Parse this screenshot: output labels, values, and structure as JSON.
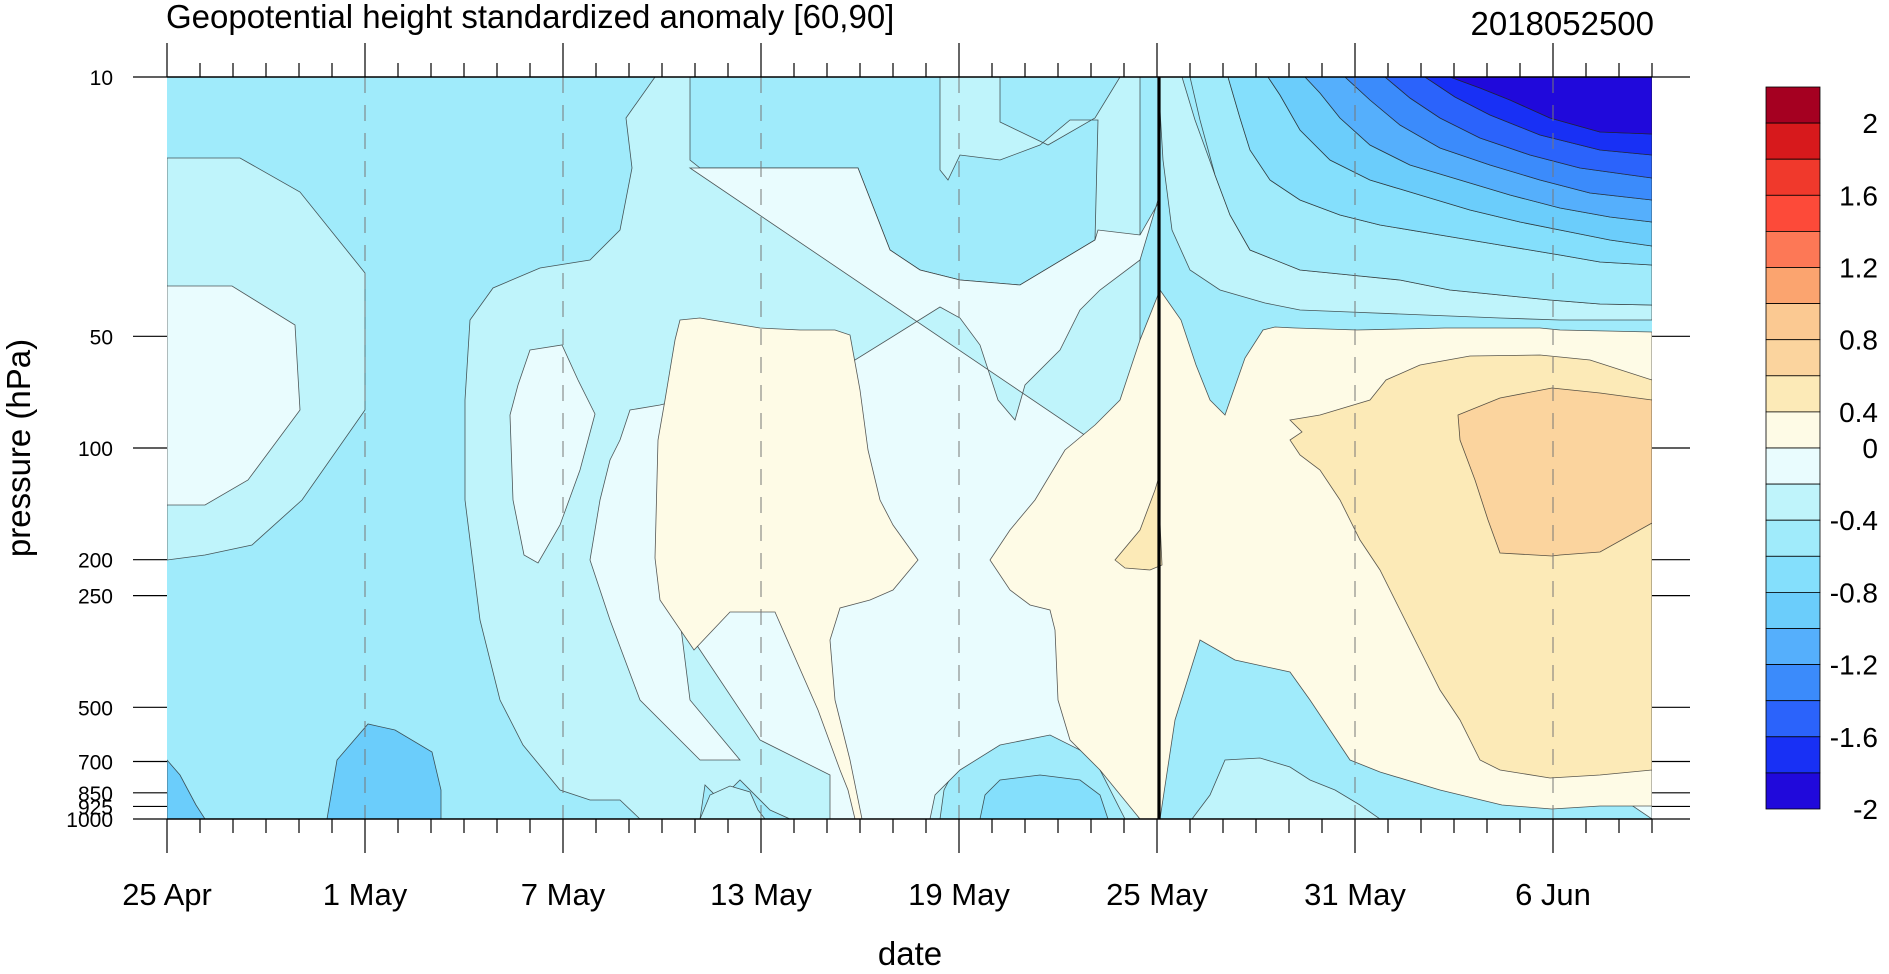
{
  "chart_data": {
    "type": "contour",
    "title": "Geopotential height standardized anomaly [60,90]",
    "subtitle_right": "2018052500",
    "xlabel": "date",
    "ylabel": "pressure (hPa)",
    "x_ticks": [
      "25 Apr",
      "1 May",
      "7 May",
      "13 May",
      "19 May",
      "25 May",
      "31 May",
      "6 Jun"
    ],
    "x_range": [
      "25 Apr",
      "9 Jun"
    ],
    "y_ticks": [
      10,
      50,
      100,
      200,
      250,
      500,
      700,
      850,
      925,
      1000
    ],
    "y_tick_labels": [
      "10",
      "50",
      "100",
      "200",
      "250",
      "500",
      "700",
      "850",
      "925",
      "1000"
    ],
    "y_range": [
      10,
      1000
    ],
    "y_scale": "log",
    "current_date_marker": "25 May",
    "grid": "dashed vertical lines at labeled dates",
    "colorbar": {
      "levels": [
        2,
        1.6,
        1.2,
        0.8,
        0.4,
        0,
        -0.4,
        -0.8,
        -1.2,
        -1.6,
        -2
      ],
      "level_labels": [
        "2",
        "1.6",
        "1.2",
        "0.8",
        "0.4",
        "0",
        "-0.4",
        "-0.8",
        "-1.2",
        "-1.6",
        "-2"
      ],
      "colors": [
        "#a50021",
        "#d7191c",
        "#f0392c",
        "#fd4a39",
        "#fd7856",
        "#fba46f",
        "#fbc992",
        "#fbd49e",
        "#fceab7",
        "#fefbe6",
        "#e9fcfe",
        "#bff4fb",
        "#a0ebfb",
        "#84dffc",
        "#6bcdfb",
        "#55affc",
        "#3b8bfb",
        "#2b63fb",
        "#1830f5",
        "#2009db"
      ]
    },
    "fill_regions": {
      "background": "#a0ebfb",
      "upper_left": "#bff4fb",
      "left_mid": "#e9fcfe",
      "lower_left_band": "#84dffc",
      "lower_left_core": "#6bcdfb",
      "corner_deep": "#55affc",
      "mid_band": "#bff4fb",
      "mid_wide": "#e9fcfe",
      "pale_pocket": "#e9fcfe",
      "warm_center": "#fefbe6",
      "warm_mid_right": "#fefbe6",
      "warm_right": "#fceab7",
      "warm_blob": "#fbd49e",
      "warm_small": "#fceab7",
      "upper_right_1": "#bff4fb",
      "upper_right_2": "#a0ebfb",
      "upper_right_3": "#84dffc",
      "upper_right_4": "#6bcdfb",
      "upper_right_5": "#55affc",
      "upper_right_6": "#3b8bfb",
      "upper_right_7": "#2b63fb",
      "upper_right_8": "#1830f5",
      "upper_right_9": "#2009db",
      "lower_mid_blob": "#84dffc",
      "lower_mid_pale": "#bff4fb",
      "lower_right_pale": "#bff4fb"
    }
  }
}
